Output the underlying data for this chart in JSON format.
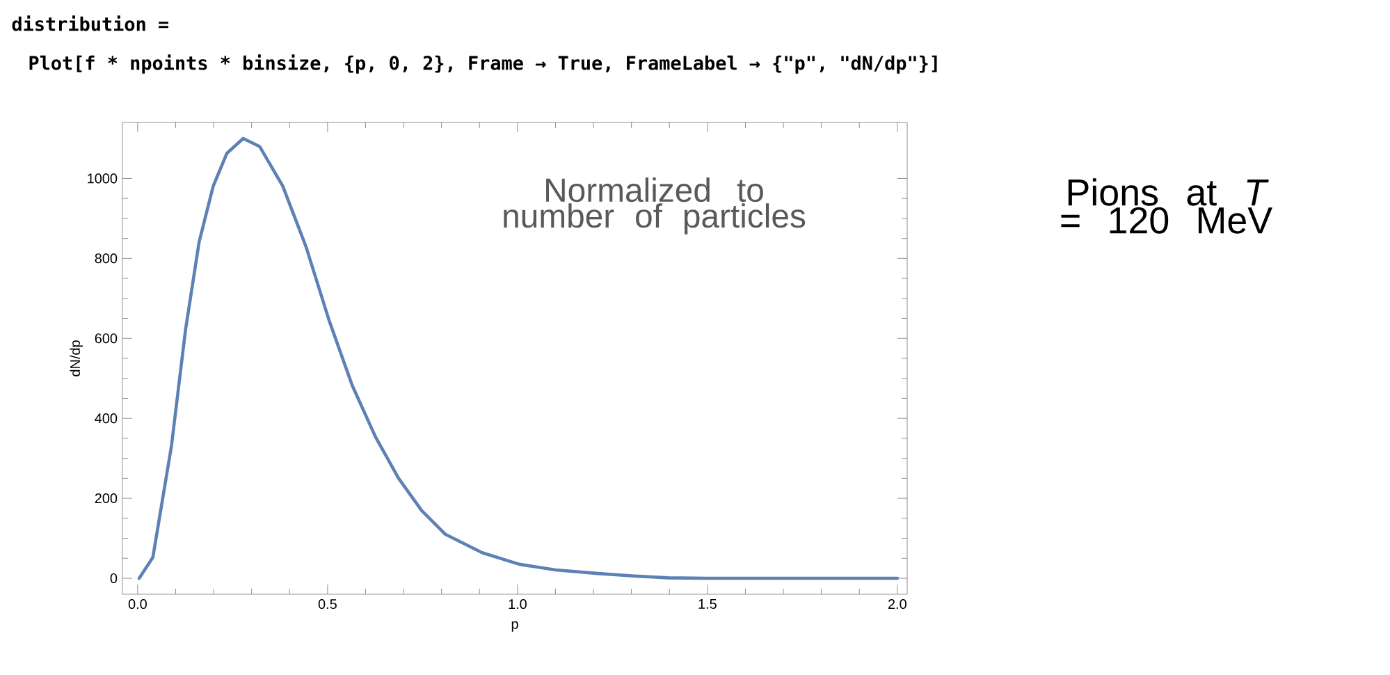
{
  "chart_data": {
    "type": "line",
    "xlabel": "p",
    "ylabel": "dN/dp",
    "x": [
      0.004,
      0.04,
      0.089,
      0.126,
      0.162,
      0.199,
      0.235,
      0.278,
      0.321,
      0.382,
      0.443,
      0.504,
      0.565,
      0.626,
      0.687,
      0.748,
      0.81,
      0.907,
      1.005,
      1.1,
      1.212,
      1.3,
      1.396,
      1.5,
      1.7,
      2.0
    ],
    "series": [
      {
        "color": "#5e81b5",
        "values": [
          0,
          52,
          331,
          621,
          842,
          981,
          1063,
          1100,
          1080,
          981,
          830,
          645,
          482,
          354,
          250,
          169,
          110,
          64,
          35,
          21,
          12,
          6,
          1,
          0,
          0,
          0
        ]
      }
    ],
    "xlim": [
      -0.04,
      2.026
    ],
    "ylim": [
      -40,
      1140
    ],
    "xticks": [
      {
        "value": 0,
        "label": "0.0"
      },
      0.5,
      {
        "value": 1,
        "label": "1.0"
      },
      1.5,
      {
        "value": 2,
        "label": "2.0"
      }
    ],
    "yticks": [
      0,
      200,
      400,
      600,
      800,
      1000
    ],
    "marker": "none",
    "line_style": "solid",
    "annotations": [
      "distribution =",
      "Plot[f * npoints * binsize, {p, 0, 2}, Frame → True, FrameLabel → {\"p\", \"dN/dp\"}]",
      "Normalized to number of particles",
      "Pions at *T* = 120 MeV"
    ]
  }
}
